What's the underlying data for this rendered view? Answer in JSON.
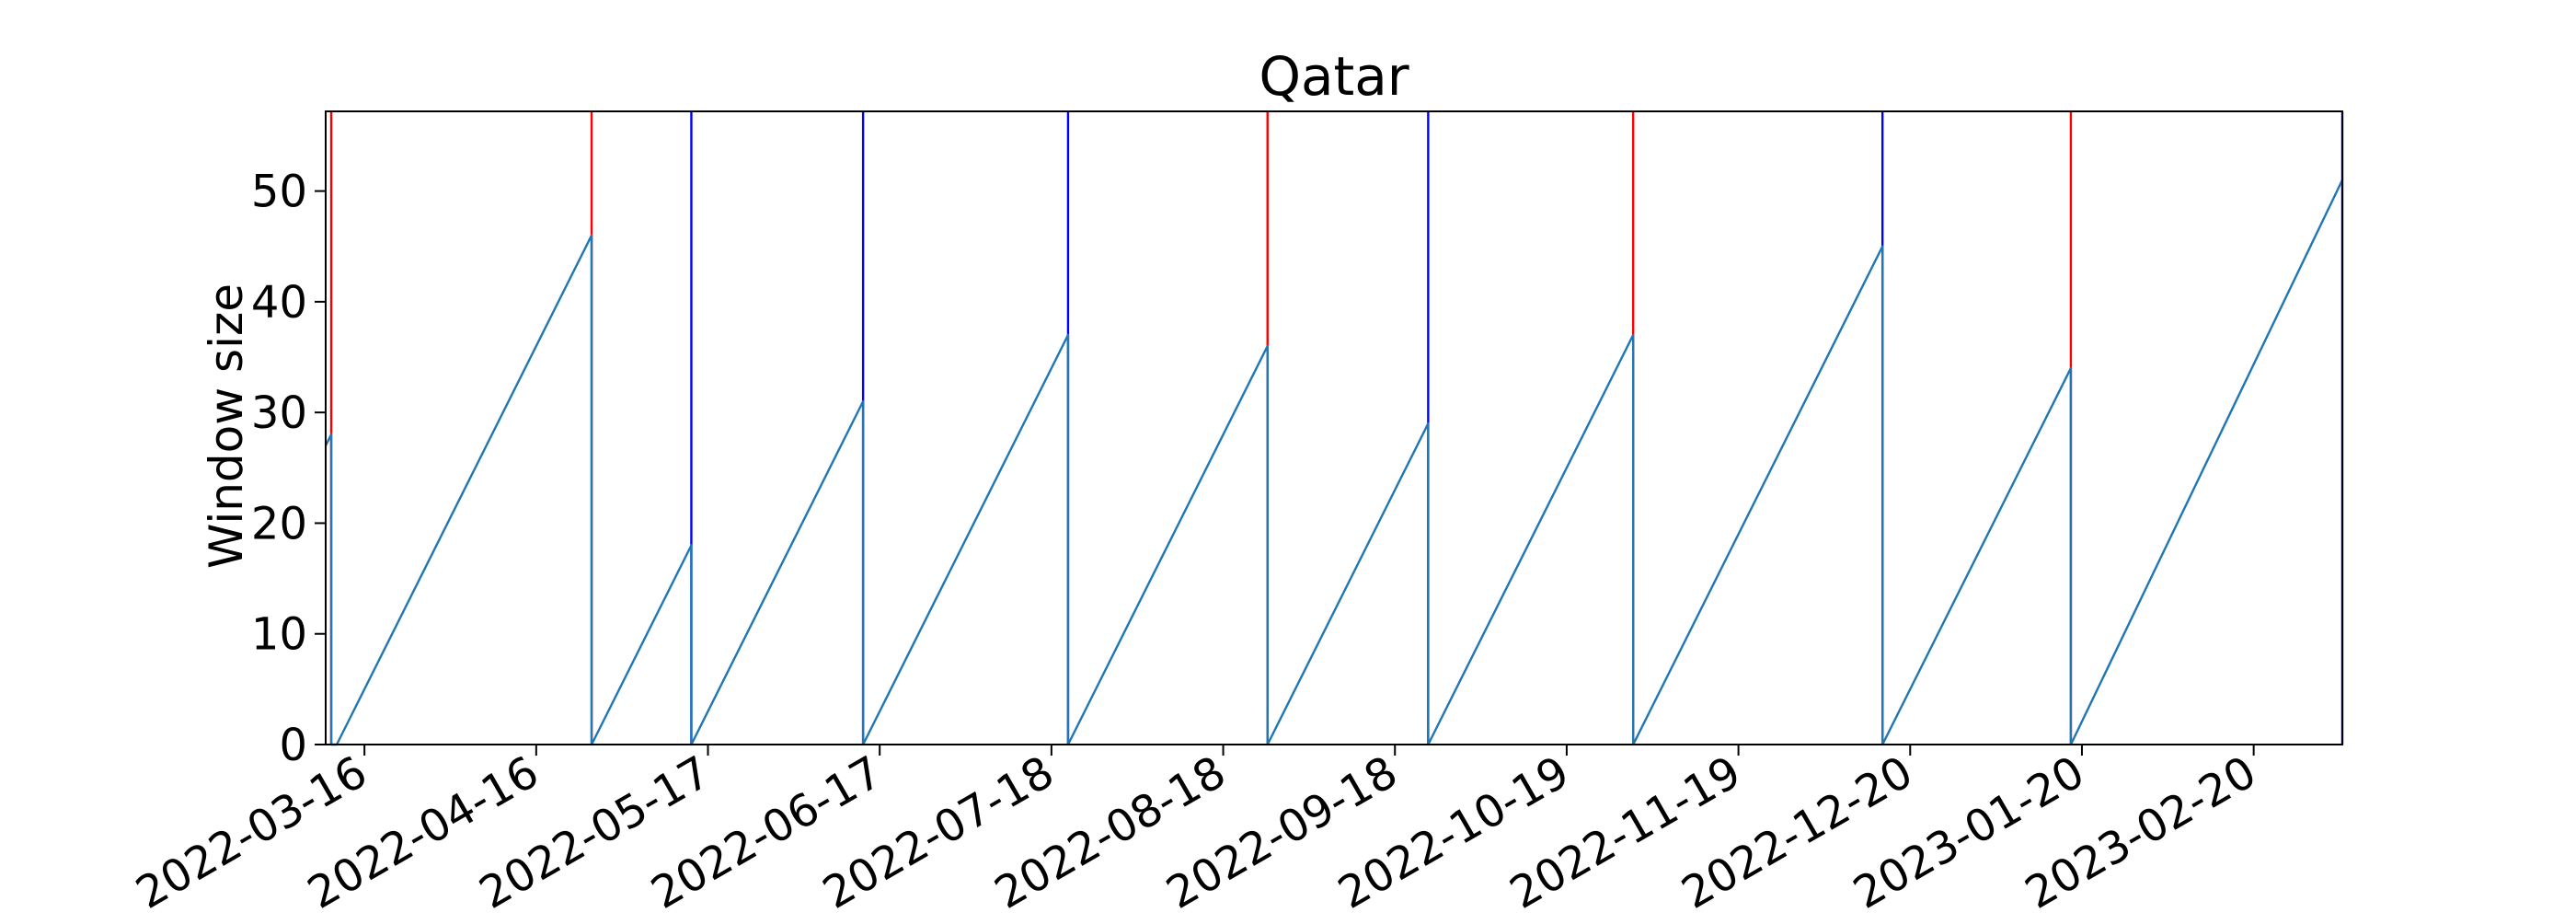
{
  "chart_data": {
    "type": "line",
    "title": "Qatar",
    "xlabel": "",
    "ylabel": "Window size",
    "x_tick_labels": [
      "2022-03-16",
      "2022-04-16",
      "2022-05-17",
      "2022-06-17",
      "2022-07-18",
      "2022-08-18",
      "2022-09-18",
      "2022-10-19",
      "2022-11-19",
      "2022-12-20",
      "2023-01-20",
      "2023-02-20"
    ],
    "y_ticks": [
      0,
      10,
      20,
      30,
      40,
      50
    ],
    "xlim": [
      "2022-03-09",
      "2023-03-08"
    ],
    "ylim": [
      0,
      57.2
    ],
    "grid": false,
    "colors": {
      "line": "#1f77b4",
      "red_marker": "#ff0000",
      "blue_marker": "#0000ff"
    },
    "series": [
      {
        "x": [
          "2022-03-09",
          "2022-03-10",
          "2022-03-10",
          "2022-03-11",
          "2022-04-26",
          "2022-04-26",
          "2022-05-14",
          "2022-05-14",
          "2022-06-14",
          "2022-06-14",
          "2022-07-21",
          "2022-07-21",
          "2022-08-26",
          "2022-08-26",
          "2022-09-24",
          "2022-09-24",
          "2022-10-31",
          "2022-10-31",
          "2022-12-15",
          "2022-12-15",
          "2023-01-18",
          "2023-01-18",
          "2023-03-08"
        ],
        "y": [
          27,
          28,
          0,
          0,
          46,
          0,
          18,
          0,
          31,
          0,
          37,
          0,
          36,
          0,
          29,
          0,
          37,
          0,
          45,
          0,
          34,
          0,
          51
        ]
      }
    ],
    "vertical_markers": [
      {
        "x": "2022-03-10",
        "color": "red"
      },
      {
        "x": "2022-04-26",
        "color": "red"
      },
      {
        "x": "2022-05-14",
        "color": "blue"
      },
      {
        "x": "2022-06-14",
        "color": "blue"
      },
      {
        "x": "2022-07-21",
        "color": "blue"
      },
      {
        "x": "2022-08-26",
        "color": "red"
      },
      {
        "x": "2022-09-24",
        "color": "blue"
      },
      {
        "x": "2022-10-31",
        "color": "red"
      },
      {
        "x": "2022-12-15",
        "color": "blue"
      },
      {
        "x": "2023-01-18",
        "color": "red"
      },
      {
        "x": "2023-03-08",
        "color": "blue"
      }
    ]
  }
}
